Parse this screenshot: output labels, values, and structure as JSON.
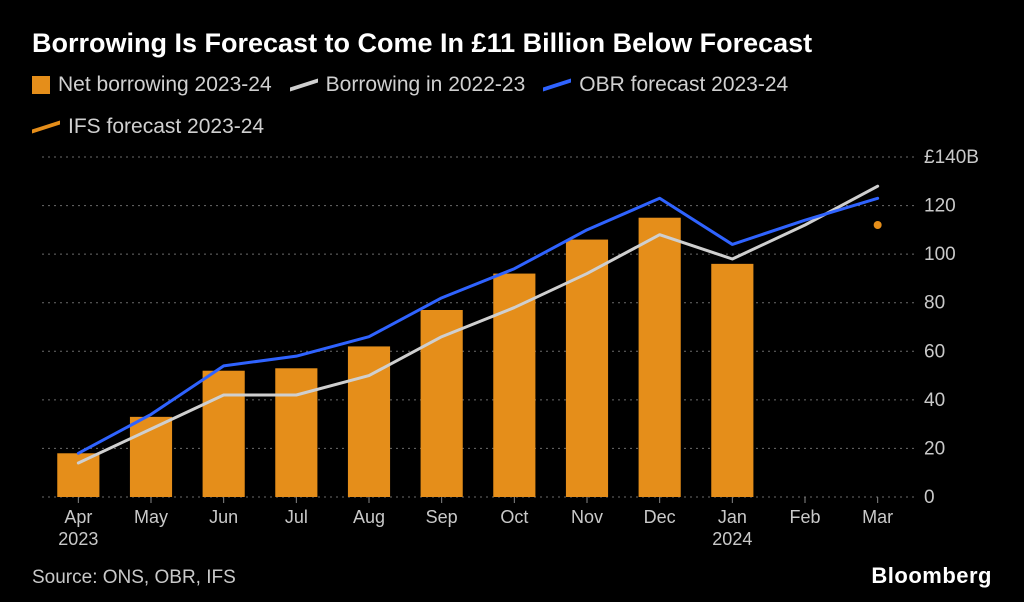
{
  "title": "Borrowing Is Forecast to Come In £11 Billion Below Forecast",
  "source_line": "Source: ONS, OBR, IFS",
  "brand": "Bloomberg",
  "legend": [
    {
      "label": "Net borrowing 2023-24",
      "type": "box",
      "color": "#e58e1a"
    },
    {
      "label": "Borrowing in 2022-23",
      "type": "line",
      "color": "#cfcfcf"
    },
    {
      "label": "OBR forecast 2023-24",
      "type": "line",
      "color": "#2f63ff"
    },
    {
      "label": "IFS forecast 2023-24",
      "type": "line",
      "color": "#e58e1a"
    }
  ],
  "chart": {
    "type": "bar+line",
    "background_color": "#000000",
    "grid_color": "#6b6b6b",
    "text_color": "#c9c9c9",
    "title_fontsize": 27,
    "label_fontsize": 19,
    "categories": [
      "Apr",
      "May",
      "Jun",
      "Jul",
      "Aug",
      "Sep",
      "Oct",
      "Nov",
      "Dec",
      "Jan",
      "Feb",
      "Mar"
    ],
    "category_sub": {
      "0": "2023",
      "9": "2024"
    },
    "y_prefix": "£",
    "y_suffix": "B",
    "ylim": [
      0,
      140
    ],
    "ytick_step": 20,
    "bar_series": {
      "name": "Net borrowing 2023-24",
      "color": "#e58e1a",
      "values": [
        18,
        33,
        52,
        53,
        62,
        77,
        92,
        106,
        115,
        96,
        null,
        null
      ],
      "bar_width": 0.58
    },
    "line_series": [
      {
        "name": "Borrowing in 2022-23",
        "color": "#cfcfcf",
        "stroke_width": 3,
        "values": [
          14,
          28,
          42,
          42,
          50,
          66,
          78,
          92,
          108,
          98,
          112,
          128
        ]
      },
      {
        "name": "OBR forecast 2023-24",
        "color": "#2f63ff",
        "stroke_width": 3,
        "values": [
          18,
          34,
          54,
          58,
          66,
          82,
          94,
          110,
          123,
          104,
          114,
          123
        ]
      }
    ],
    "point_series": [
      {
        "name": "IFS forecast 2023-24",
        "color": "#e58e1a",
        "points": [
          {
            "x_index": 11,
            "y": 112
          }
        ],
        "marker_size": 4
      }
    ]
  }
}
